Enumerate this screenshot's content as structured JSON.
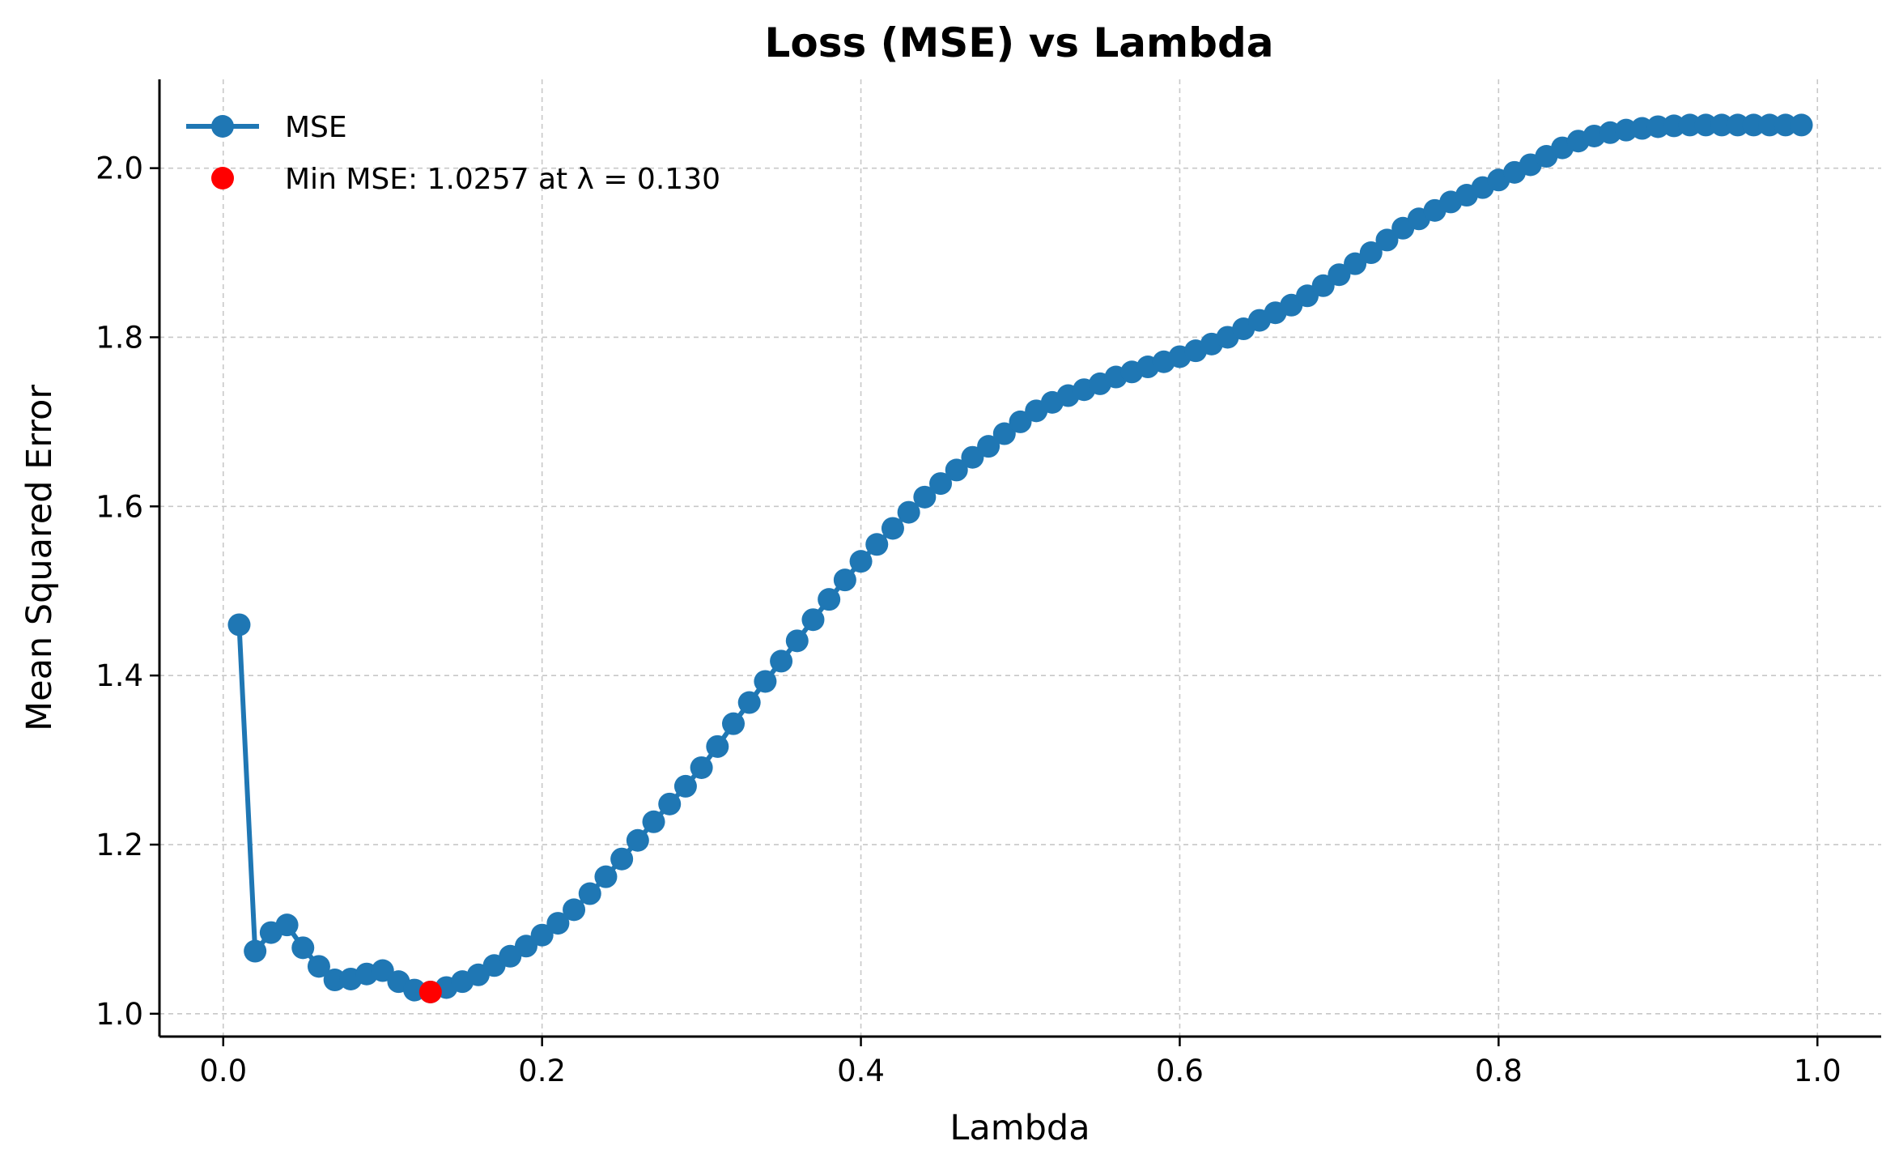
{
  "chart_data": {
    "type": "line",
    "title": "Loss (MSE) vs Lambda",
    "xlabel": "Lambda",
    "ylabel": "Mean Squared Error",
    "xlim": [
      -0.04,
      1.04
    ],
    "ylim": [
      0.973,
      2.105
    ],
    "xticks": [
      0.0,
      0.2,
      0.4,
      0.6,
      0.8,
      1.0
    ],
    "xtick_labels": [
      "0.0",
      "0.2",
      "0.4",
      "0.6",
      "0.8",
      "1.0"
    ],
    "yticks": [
      1.0,
      1.2,
      1.4,
      1.6,
      1.8,
      2.0
    ],
    "ytick_labels": [
      "1.0",
      "1.2",
      "1.4",
      "1.6",
      "1.8",
      "2.0"
    ],
    "grid": true,
    "legend_position": "top-left",
    "series": [
      {
        "name": "MSE",
        "color": "#1f77b4",
        "marker": "circle",
        "x": [
          0.01,
          0.02,
          0.03,
          0.04,
          0.05,
          0.06,
          0.07,
          0.08,
          0.09,
          0.1,
          0.11,
          0.12,
          0.13,
          0.14,
          0.15,
          0.16,
          0.17,
          0.18,
          0.19,
          0.2,
          0.21,
          0.22,
          0.23,
          0.24,
          0.25,
          0.26,
          0.27,
          0.28,
          0.29,
          0.3,
          0.31,
          0.32,
          0.33,
          0.34,
          0.35,
          0.36,
          0.37,
          0.38,
          0.39,
          0.4,
          0.41,
          0.42,
          0.43,
          0.44,
          0.45,
          0.46,
          0.47,
          0.48,
          0.49,
          0.5,
          0.51,
          0.52,
          0.53,
          0.54,
          0.55,
          0.56,
          0.57,
          0.58,
          0.59,
          0.6,
          0.61,
          0.62,
          0.63,
          0.64,
          0.65,
          0.66,
          0.67,
          0.68,
          0.69,
          0.7,
          0.71,
          0.72,
          0.73,
          0.74,
          0.75,
          0.76,
          0.77,
          0.78,
          0.79,
          0.8,
          0.81,
          0.82,
          0.83,
          0.84,
          0.85,
          0.86,
          0.87,
          0.88,
          0.89,
          0.9,
          0.91,
          0.92,
          0.93,
          0.94,
          0.95,
          0.96,
          0.97,
          0.98,
          0.99
        ],
        "y": [
          1.46,
          1.074,
          1.096,
          1.105,
          1.078,
          1.056,
          1.04,
          1.041,
          1.047,
          1.051,
          1.038,
          1.028,
          1.0257,
          1.031,
          1.038,
          1.046,
          1.057,
          1.068,
          1.08,
          1.093,
          1.107,
          1.123,
          1.142,
          1.162,
          1.183,
          1.205,
          1.227,
          1.248,
          1.269,
          1.291,
          1.316,
          1.343,
          1.368,
          1.393,
          1.417,
          1.441,
          1.466,
          1.49,
          1.513,
          1.535,
          1.555,
          1.574,
          1.593,
          1.611,
          1.627,
          1.643,
          1.658,
          1.671,
          1.686,
          1.7,
          1.713,
          1.723,
          1.731,
          1.738,
          1.745,
          1.753,
          1.759,
          1.765,
          1.771,
          1.777,
          1.784,
          1.792,
          1.8,
          1.81,
          1.82,
          1.829,
          1.838,
          1.849,
          1.861,
          1.874,
          1.887,
          1.9,
          1.915,
          1.929,
          1.94,
          1.95,
          1.96,
          1.968,
          1.977,
          1.986,
          1.995,
          2.004,
          2.014,
          2.024,
          2.032,
          2.038,
          2.042,
          2.045,
          2.047,
          2.049,
          2.05,
          2.051,
          2.051,
          2.051,
          2.051,
          2.051,
          2.051,
          2.051,
          2.051
        ]
      },
      {
        "name": "Min MSE: 1.0257 at λ = 0.130",
        "color": "#ff0000",
        "marker": "circle",
        "x": [
          0.13
        ],
        "y": [
          1.0257
        ]
      }
    ]
  }
}
